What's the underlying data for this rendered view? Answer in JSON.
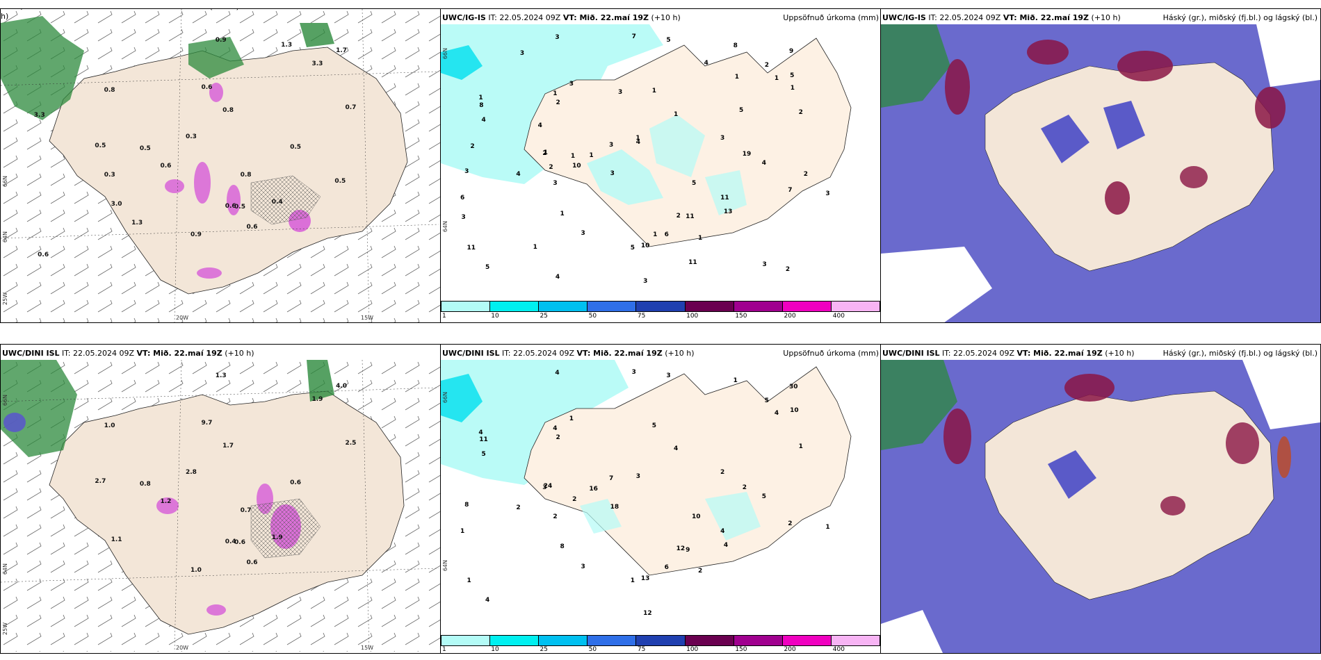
{
  "rows": [
    {
      "model": "UWC/IG-IS",
      "it_label": "IT:",
      "it_value": "22.05.2024 09Z",
      "vt_label": "VT: Mið. 22.maí 19Z",
      "lead": "(+10 h)",
      "panel1_header_extra": "h)",
      "precip_numbers": [
        "5",
        "4",
        "1",
        "2",
        "1",
        "5",
        "10",
        "9",
        "13",
        "11",
        "3",
        "1",
        "1",
        "1",
        "1",
        "2",
        "19",
        "2",
        "1",
        "3",
        "8",
        "7",
        "5",
        "3",
        "4",
        "6",
        "11",
        "5",
        "3",
        "4",
        "3",
        "4",
        "1",
        "2",
        "3",
        "8",
        "2",
        "3",
        "3",
        "1",
        "7",
        "11",
        "10",
        "5",
        "6",
        "3",
        "3",
        "5",
        "1",
        "2",
        "4",
        "1",
        "3",
        "2",
        "11",
        "3",
        "2",
        "1",
        "1",
        "1",
        "4",
        "1",
        "4",
        "3",
        "2",
        "3"
      ],
      "wind_labels": [
        "0.9",
        "0.3",
        "0.6",
        "0.6",
        "0.5",
        "0.8",
        "0.9",
        "1.7",
        "0.4",
        "0.5",
        "0.6",
        "0.5",
        "3.0",
        "0.8",
        "0.6",
        "3.3",
        "0.5",
        "0.7",
        "0.8",
        "0.3",
        "1.3",
        "0.5",
        "0.6",
        "1.3",
        "3.3"
      ]
    },
    {
      "model": "UWC/DINI ISL",
      "it_label": "IT:",
      "it_value": "22.05.2024 09Z",
      "vt_label": "VT: Mið. 22.maí 19Z",
      "lead": "(+10 h)",
      "panel1_header_extra": "",
      "precip_numbers": [
        "3",
        "3",
        "2",
        "12",
        "16",
        "10",
        "13",
        "30",
        "4",
        "9",
        "18",
        "24",
        "8",
        "4",
        "5",
        "5",
        "2",
        "1",
        "4",
        "2",
        "1",
        "2",
        "4",
        "3",
        "5",
        "6",
        "1",
        "1",
        "8",
        "2",
        "7",
        "5",
        "4",
        "3",
        "4",
        "11",
        "2",
        "2",
        "12",
        "4",
        "3",
        "4",
        "2",
        "10",
        "1",
        "1",
        "1"
      ],
      "wind_labels": [
        "1.3",
        "2.8",
        "0.6",
        "0.4",
        "0.8",
        "0.7",
        "1.0",
        "4.0",
        "1.9",
        "0.6",
        "1.2",
        "2.7",
        "1.1",
        "1.0",
        "9.7",
        "1.9",
        "0.6",
        "2.5",
        "1.7"
      ]
    }
  ],
  "precip_title": "Uppsöfnuð úrkoma (mm)",
  "cloud_title": "Háský (gr.), miðský (fj.bl.) og lágský (bl.)",
  "colorbar": {
    "ticks": [
      "1",
      "10",
      "25",
      "50",
      "75",
      "100",
      "150",
      "200",
      "400"
    ],
    "colors": [
      "#b3fbf6",
      "#00f0f0",
      "#00c0f0",
      "#2f6fe8",
      "#2040b0",
      "#6a0050",
      "#a0008f",
      "#f000c0",
      "#f7b4f4"
    ]
  },
  "graticule": {
    "lat_labels": [
      "66N",
      "64N"
    ],
    "lon_labels": [
      "25W",
      "20W",
      "15W"
    ],
    "precip_lat_labels": [
      "66N",
      "64N"
    ]
  },
  "colors": {
    "land": "#f3e6d8",
    "land_precip": "#fdf1e4",
    "green_precip": "#2c8a3c",
    "light_green": "#b6e9b0",
    "magenta": "#d65bd8",
    "cloud_high": "#8a1545",
    "cloud_mid": "#5a5ac8",
    "cloud_low": "#3aa0e0",
    "precip_cyan": "#b3fbf6"
  }
}
